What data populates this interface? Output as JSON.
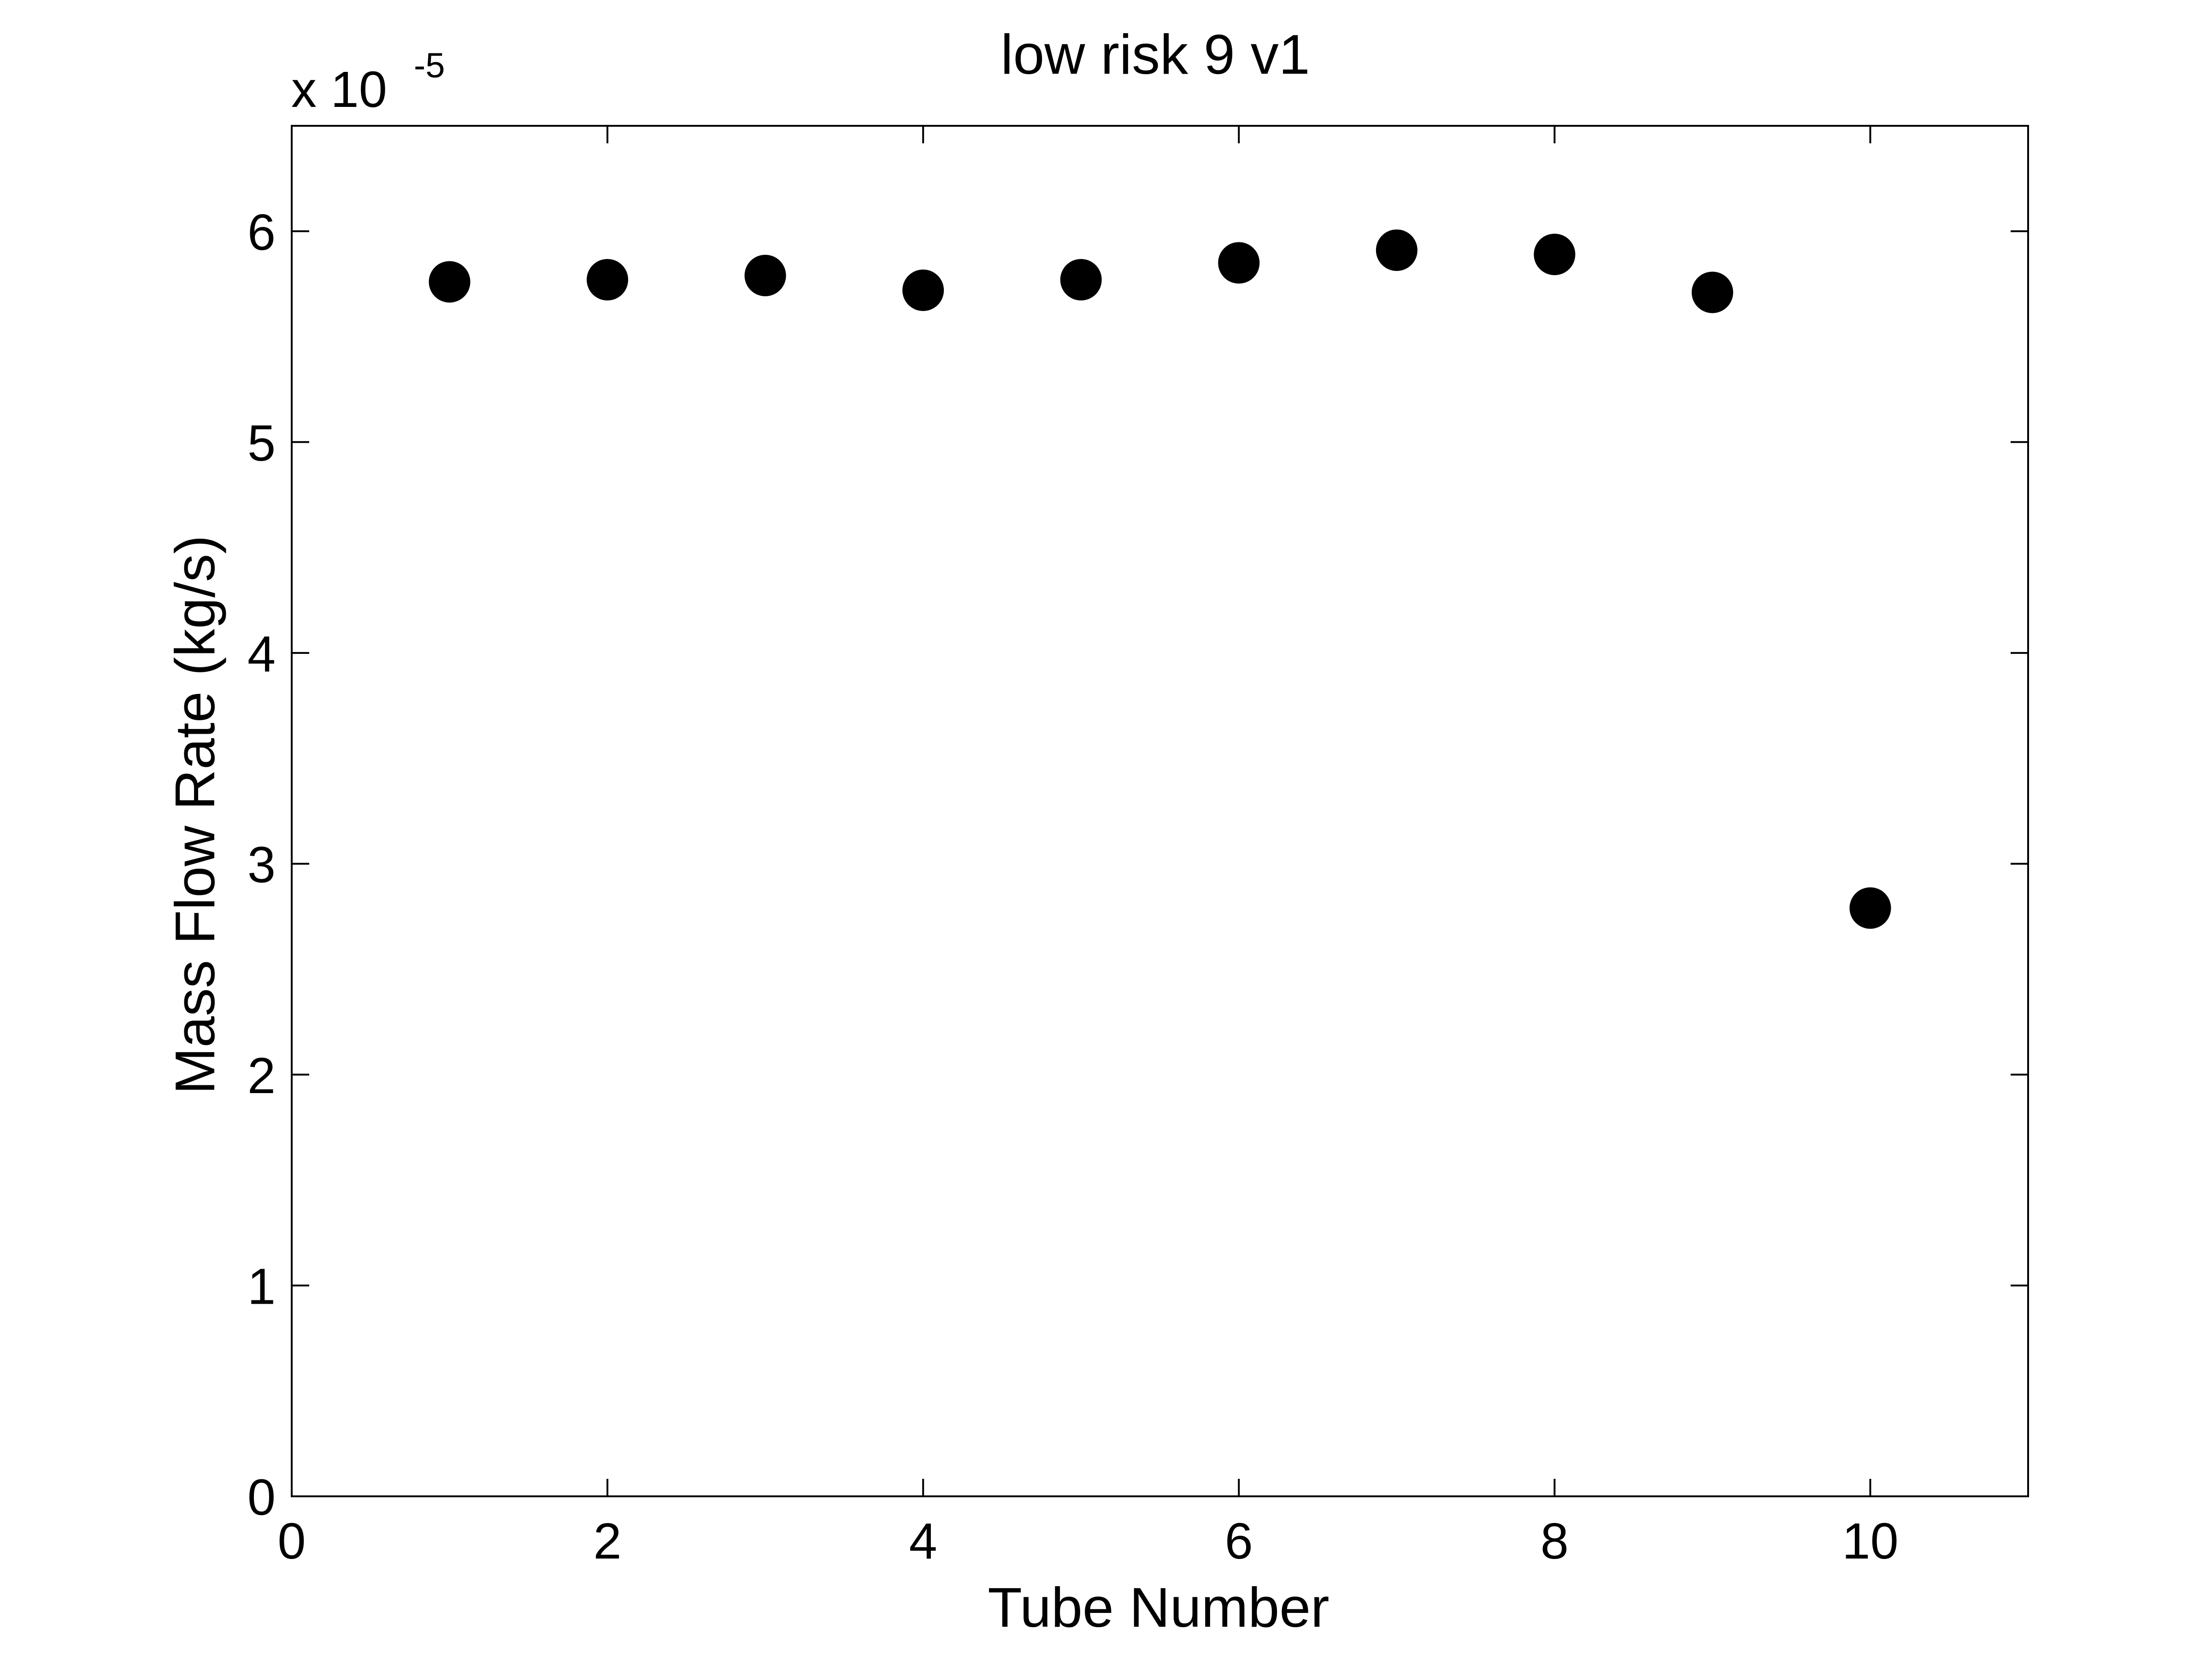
{
  "chart_data": {
    "type": "scatter",
    "title": "low risk 9 v1",
    "xlabel": "Tube Number",
    "ylabel": "Mass Flow Rate (kg/s)",
    "y_multiplier_label": "x 10",
    "y_multiplier_exponent": "-5",
    "xlim": [
      0,
      11
    ],
    "ylim": [
      0,
      6.5
    ],
    "xticks": [
      0,
      2,
      4,
      6,
      8,
      10
    ],
    "yticks": [
      0,
      1,
      2,
      3,
      4,
      5,
      6
    ],
    "grid": false,
    "marker_color": "#000000",
    "x": [
      1,
      2,
      3,
      4,
      5,
      6,
      7,
      8,
      9,
      10
    ],
    "y": [
      5.76,
      5.77,
      5.79,
      5.72,
      5.77,
      5.85,
      5.91,
      5.89,
      5.71,
      2.79
    ]
  }
}
